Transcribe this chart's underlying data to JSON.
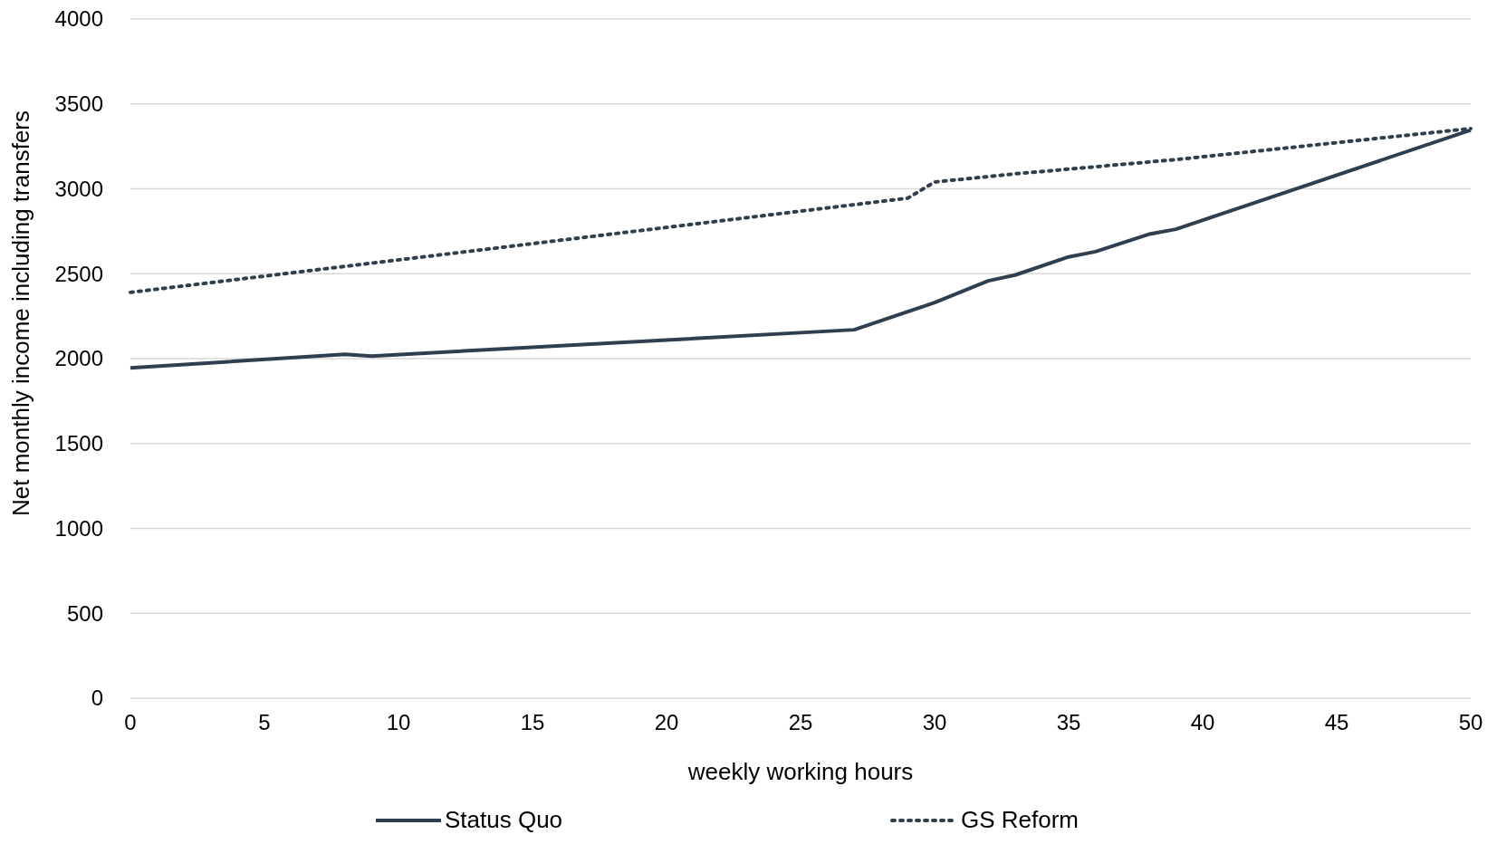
{
  "chart_data": {
    "type": "line",
    "xlabel": "weekly working hours",
    "ylabel": "Net monthly income including transfers",
    "xlim": [
      0,
      50
    ],
    "xticks": [
      0,
      5,
      10,
      15,
      20,
      25,
      30,
      35,
      40,
      45,
      50
    ],
    "ylim": [
      0,
      4000
    ],
    "yticks": [
      0,
      500,
      1000,
      1500,
      2000,
      2500,
      3000,
      3500,
      4000
    ],
    "grid": "y",
    "legend": "bottom",
    "series": [
      {
        "name": "Status Quo",
        "color": "#2f3f4e",
        "line_style": "solid",
        "x": [
          0,
          8,
          9,
          27,
          30,
          32,
          33,
          35,
          36,
          38,
          39,
          50
        ],
        "values": [
          1945,
          2025,
          2015,
          2170,
          2330,
          2458,
          2492,
          2599,
          2630,
          2733,
          2762,
          3346
        ]
      },
      {
        "name": "GS Reform",
        "color": "#2f3f4e",
        "line_style": "dotted",
        "x": [
          0,
          29,
          30,
          33,
          35,
          39,
          50
        ],
        "values": [
          2390,
          2945,
          3040,
          3088,
          3116,
          3172,
          3355
        ]
      }
    ]
  }
}
